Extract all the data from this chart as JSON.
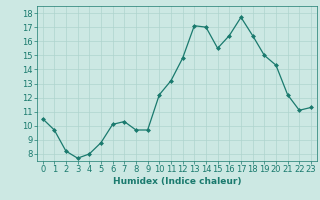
{
  "x": [
    0,
    1,
    2,
    3,
    4,
    5,
    6,
    7,
    8,
    9,
    10,
    11,
    12,
    13,
    14,
    15,
    16,
    17,
    18,
    19,
    20,
    21,
    22,
    23
  ],
  "y": [
    10.5,
    9.7,
    8.2,
    7.7,
    8.0,
    8.8,
    10.1,
    10.3,
    9.7,
    9.7,
    12.2,
    13.2,
    14.8,
    17.1,
    17.0,
    15.5,
    16.4,
    17.7,
    16.4,
    15.0,
    14.3,
    12.2,
    11.1,
    11.3
  ],
  "line_color": "#1a7a6e",
  "marker": "D",
  "marker_size": 2.0,
  "bg_color": "#cce8e3",
  "grid_color": "#afd4ce",
  "xlabel": "Humidex (Indice chaleur)",
  "xlabel_fontsize": 6.5,
  "tick_fontsize": 6.0,
  "ylim": [
    7.5,
    18.5
  ],
  "xlim": [
    -0.5,
    23.5
  ],
  "yticks": [
    8,
    9,
    10,
    11,
    12,
    13,
    14,
    15,
    16,
    17,
    18
  ],
  "xticks": [
    0,
    1,
    2,
    3,
    4,
    5,
    6,
    7,
    8,
    9,
    10,
    11,
    12,
    13,
    14,
    15,
    16,
    17,
    18,
    19,
    20,
    21,
    22,
    23
  ]
}
